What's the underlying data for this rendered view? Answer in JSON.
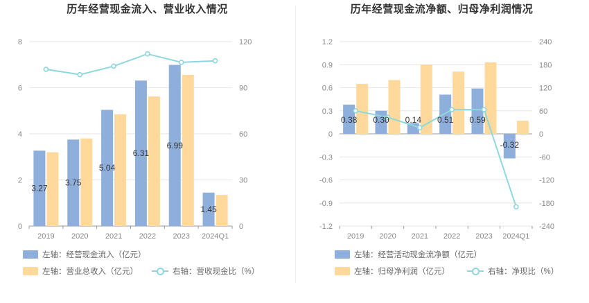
{
  "colors": {
    "blue": "#8eaedc",
    "orange": "#fed99b",
    "line": "#8dd7dd",
    "grid": "#e6e6e6",
    "axis": "#999999"
  },
  "chart_data": [
    {
      "type": "bar",
      "title": "历年经营现金流入、营业收入情况",
      "categories": [
        "2019",
        "2020",
        "2021",
        "2022",
        "2023",
        "2024Q1"
      ],
      "left_axis": {
        "ticks": [
          "0",
          "2",
          "4",
          "6",
          "8"
        ],
        "ylim": [
          0,
          8
        ]
      },
      "right_axis": {
        "ticks": [
          "0",
          "30",
          "60",
          "90",
          "120"
        ],
        "ylim": [
          0,
          120
        ]
      },
      "series": [
        {
          "name": "左轴：经营现金流入（亿元）",
          "axis": "left",
          "kind": "bar",
          "color": "#8eaedc",
          "values": [
            3.27,
            3.75,
            5.04,
            6.31,
            6.99,
            1.45
          ],
          "labels": [
            "3.27",
            "3.75",
            "5.04",
            "6.31",
            "6.99",
            "1.45"
          ]
        },
        {
          "name": "左轴：营业总收入（亿元）",
          "axis": "left",
          "kind": "bar",
          "color": "#fed99b",
          "values": [
            3.2,
            3.8,
            4.85,
            5.62,
            6.56,
            1.35
          ]
        },
        {
          "name": "右轴：营收现金比（%）",
          "axis": "right",
          "kind": "line",
          "color": "#8dd7dd",
          "values": [
            102,
            98.5,
            104,
            112,
            106.5,
            107.5
          ]
        }
      ],
      "legend": [
        "左轴：经营现金流入（亿元）",
        "左轴：营业总收入（亿元）",
        "右轴：营收现金比（%）"
      ]
    },
    {
      "type": "bar",
      "title": "历年经营现金流净额、归母净利润情况",
      "categories": [
        "2019",
        "2020",
        "2021",
        "2022",
        "2023",
        "2024Q1"
      ],
      "left_axis": {
        "ticks": [
          "-1.2",
          "-0.9",
          "-0.6",
          "-0.3",
          "0",
          "0.3",
          "0.6",
          "0.9",
          "1.2"
        ],
        "ylim": [
          -1.2,
          1.2
        ]
      },
      "right_axis": {
        "ticks": [
          "-240",
          "-180",
          "-120",
          "-60",
          "0",
          "60",
          "120",
          "180",
          "240"
        ],
        "ylim": [
          -240,
          240
        ]
      },
      "series": [
        {
          "name": "左轴：经营活动现金流净额（亿元）",
          "axis": "left",
          "kind": "bar",
          "color": "#8eaedc",
          "values": [
            0.38,
            0.3,
            0.14,
            0.51,
            0.59,
            -0.32
          ],
          "labels": [
            "0.38",
            "0.30",
            "0.14",
            "0.51",
            "0.59",
            "-0.32"
          ]
        },
        {
          "name": "左轴：归母净利润（亿元）",
          "axis": "left",
          "kind": "bar",
          "color": "#fed99b",
          "values": [
            0.65,
            0.7,
            0.9,
            0.81,
            0.93,
            0.17
          ]
        },
        {
          "name": "右轴：净现比（%）",
          "axis": "right",
          "kind": "line",
          "color": "#8dd7dd",
          "values": [
            60,
            43,
            16,
            63,
            63,
            -190
          ]
        }
      ],
      "legend": [
        "左轴：经营活动现金流净额（亿元）",
        "左轴：归母净利润（亿元）",
        "右轴：净现比（%）"
      ]
    }
  ]
}
